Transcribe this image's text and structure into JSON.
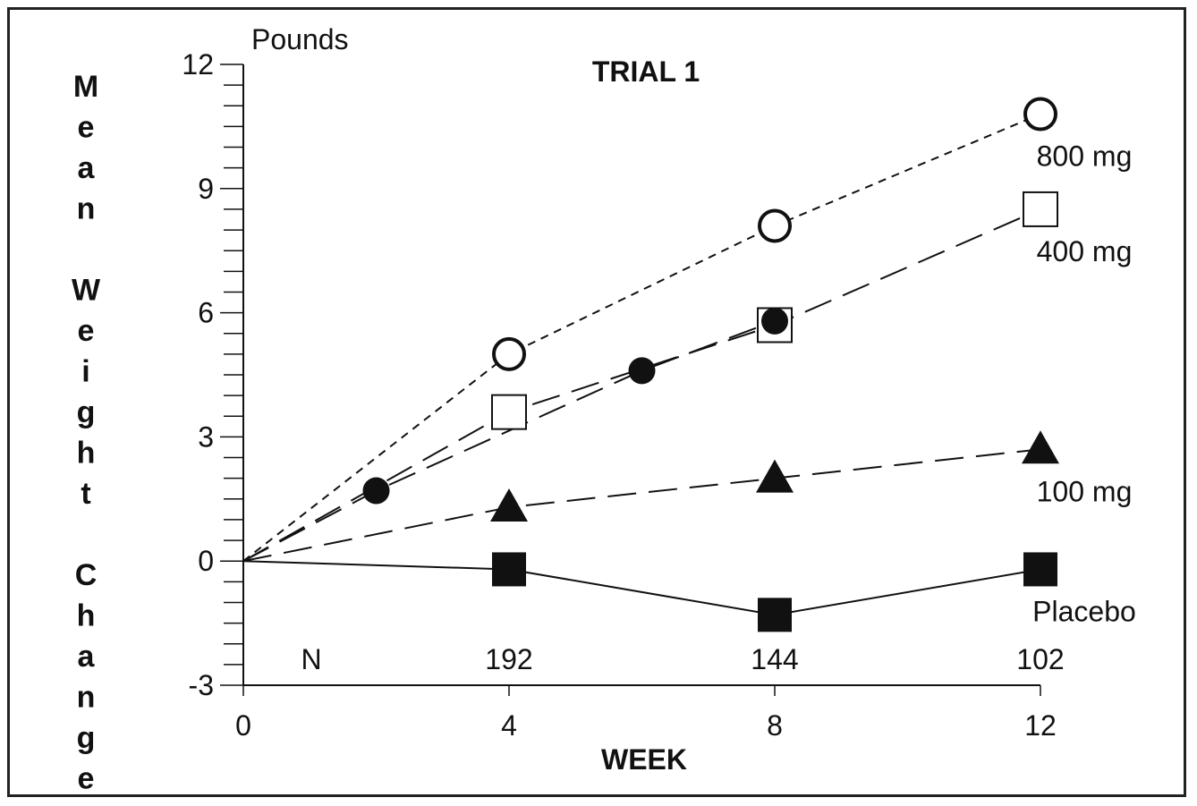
{
  "chart_data": {
    "type": "line",
    "title": "TRIAL 1",
    "xlabel": "WEEK",
    "ylabel": "Mean Weight Change",
    "yunit": "Pounds",
    "xlim": [
      0,
      12
    ],
    "ylim": [
      -3,
      12
    ],
    "xticks": [
      0,
      4,
      8,
      12
    ],
    "yticks": [
      -3,
      0,
      3,
      6,
      9,
      12
    ],
    "grid": false,
    "n_label": "N",
    "n_values": [
      {
        "week": 4,
        "label": "192"
      },
      {
        "week": 8,
        "label": "144"
      },
      {
        "week": 12,
        "label": "102"
      }
    ],
    "series": [
      {
        "name": "800 mg",
        "marker": "open-circle",
        "line": "dashed",
        "x": [
          0,
          4,
          8,
          12
        ],
        "y": [
          0,
          5.0,
          8.1,
          10.8
        ]
      },
      {
        "name": "400 mg",
        "marker": "open-square",
        "line": "long-dash",
        "x": [
          0,
          4,
          8,
          12
        ],
        "y": [
          0,
          3.6,
          5.7,
          8.5
        ]
      },
      {
        "marker": "filled-circle",
        "line": "long-dash",
        "x": [
          0,
          2,
          6,
          8
        ],
        "y": [
          0,
          1.7,
          4.6,
          5.8
        ]
      },
      {
        "name": "100 mg",
        "marker": "filled-triangle",
        "line": "long-dash",
        "x": [
          0,
          4,
          8,
          12
        ],
        "y": [
          0,
          1.3,
          2.0,
          2.7
        ]
      },
      {
        "name": "Placebo",
        "marker": "filled-square",
        "line": "solid",
        "x": [
          0,
          4,
          8,
          12
        ],
        "y": [
          0,
          -0.2,
          -1.3,
          -0.2
        ]
      }
    ]
  }
}
